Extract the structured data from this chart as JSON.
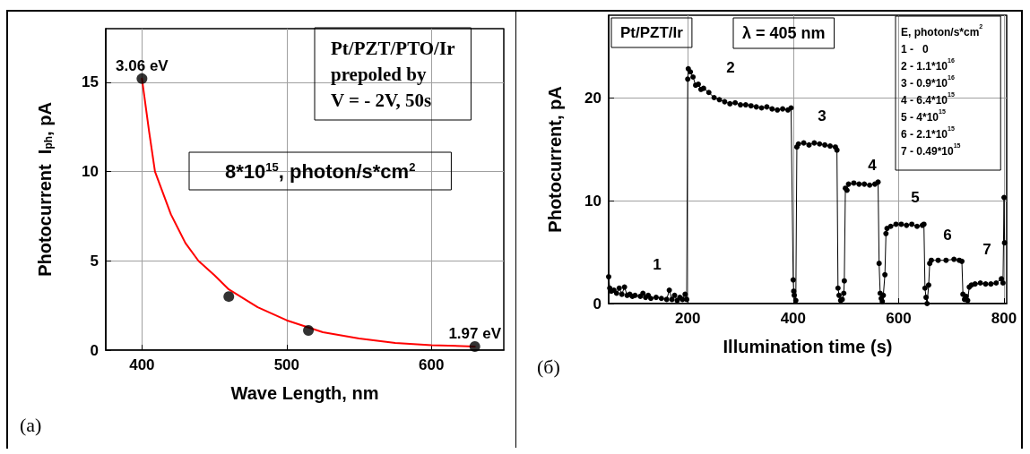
{
  "chart_data": [
    {
      "type": "scatter",
      "xlabel": "Wave Length, nm",
      "ylabel": "Photocurrent  I$_{ph}$, pA",
      "xlim": [
        375,
        650
      ],
      "xticks": [
        400,
        500,
        600
      ],
      "ylim": [
        0,
        18
      ],
      "yticks": [
        0,
        5,
        10,
        15
      ],
      "grid": true,
      "marker": "circle",
      "series": [
        {
          "color": "#000000",
          "x": [
            400,
            460,
            515,
            630
          ],
          "values": [
            15.2,
            3.0,
            1.1,
            0.2
          ]
        },
        {
          "type": "line",
          "color": "#ff0000",
          "marker": "none",
          "line_style": "solid",
          "x": [
            400,
            405,
            409,
            420,
            430,
            439,
            450,
            460,
            480,
            500,
            525,
            550,
            575,
            600,
            630
          ],
          "values": [
            15.2,
            12.2,
            10,
            7.6,
            6.0,
            5.0,
            4.2,
            3.4,
            2.4,
            1.67,
            1.0,
            0.65,
            0.4,
            0.28,
            0.2
          ]
        }
      ],
      "annotations": [
        {
          "text": "3.06 eV",
          "x": 400,
          "y": 15.2
        },
        {
          "text": "1.97 eV",
          "x": 630,
          "y": 0.2
        },
        "Pt/PZT/PTO/Ir\nprepoled by\nV = - 2V, 50s",
        "8*10$^{15}$, photon/s*cm$^{2}$",
        "(a)"
      ]
    },
    {
      "type": "line",
      "xlabel": "Illumination time (s)",
      "ylabel": "Photocurrent, pA",
      "xlim": [
        50,
        805
      ],
      "xticks": [
        200,
        400,
        600,
        800
      ],
      "ylim": [
        0,
        28
      ],
      "yticks": [
        0,
        10,
        20
      ],
      "grid": true,
      "marker": "circle",
      "line_style": "solid",
      "series": [
        {
          "color": "#000000",
          "x": [
            50,
            52,
            55,
            60,
            65,
            70,
            75,
            80,
            85,
            90,
            95,
            100,
            110,
            115,
            120,
            125,
            130,
            140,
            150,
            160,
            165,
            170,
            175,
            180,
            185,
            190,
            195,
            198,
            200,
            201,
            205,
            210,
            215,
            220,
            225,
            230,
            240,
            250,
            260,
            270,
            280,
            290,
            300,
            310,
            320,
            330,
            340,
            350,
            360,
            370,
            380,
            390,
            396,
            400,
            401,
            402,
            405,
            407,
            410,
            420,
            430,
            440,
            450,
            460,
            470,
            480,
            483,
            485,
            487,
            490,
            493,
            496,
            497,
            499,
            502,
            505,
            515,
            525,
            535,
            545,
            555,
            561,
            563,
            565,
            567,
            569,
            571,
            574,
            576,
            578,
            585,
            595,
            605,
            615,
            625,
            635,
            645,
            648,
            650,
            652,
            654,
            657,
            659,
            662,
            675,
            690,
            705,
            715,
            720,
            722,
            725,
            728,
            731,
            734,
            738,
            745,
            755,
            765,
            775,
            785,
            795,
            798,
            800,
            801
          ],
          "values": [
            2.6,
            1.5,
            1.2,
            1.3,
            1.0,
            1.5,
            0.9,
            1.6,
            0.8,
            0.9,
            0.7,
            0.8,
            0.7,
            1.0,
            0.6,
            0.8,
            0.5,
            0.6,
            0.5,
            0.4,
            1.3,
            0.4,
            0.8,
            0.3,
            0.6,
            0.4,
            0.9,
            0.4,
            21.8,
            22.8,
            22.5,
            22.0,
            21.2,
            21.3,
            20.8,
            20.9,
            20.5,
            20.0,
            19.8,
            19.6,
            19.4,
            19.5,
            19.3,
            19.3,
            19.2,
            19.1,
            19.0,
            19.1,
            18.9,
            18.8,
            18.9,
            18.8,
            19.0,
            2.3,
            1.2,
            0.8,
            0.3,
            15.2,
            15.5,
            15.6,
            15.4,
            15.6,
            15.5,
            15.4,
            15.3,
            15.2,
            14.9,
            1.5,
            0.8,
            0.3,
            0.4,
            1.0,
            2.2,
            11.2,
            11.0,
            11.6,
            11.7,
            11.6,
            11.6,
            11.5,
            11.6,
            11.8,
            3.9,
            1.0,
            0.5,
            0.2,
            0.8,
            2.8,
            6.8,
            7.3,
            7.5,
            7.7,
            7.7,
            7.6,
            7.7,
            7.5,
            7.6,
            7.7,
            1.5,
            0.6,
            0.0,
            1.8,
            3.9,
            4.2,
            4.2,
            4.2,
            4.3,
            4.2,
            4.1,
            0.9,
            0.4,
            0.7,
            0.3,
            1.6,
            1.8,
            1.9,
            2.0,
            1.9,
            1.9,
            2.0,
            2.4,
            2.0,
            10.3,
            5.9
          ]
        }
      ],
      "annotations": [
        "Pt/PZT/Ir",
        "λ = 405 nm",
        "E, photon/s*cm$^{2}$",
        "1 -   0",
        "2 - 1.1*10$^{16}$",
        "3 - 0.9*10$^{16}$",
        "4 - 6.4*10$^{15}$",
        "5 - 4*10$^{15}$",
        "6 - 2.1*10$^{15}$",
        "7 - 0.49*10$^{15}$",
        "(б)",
        "1",
        "2",
        "3",
        "4",
        "5",
        "6",
        "7"
      ]
    }
  ]
}
